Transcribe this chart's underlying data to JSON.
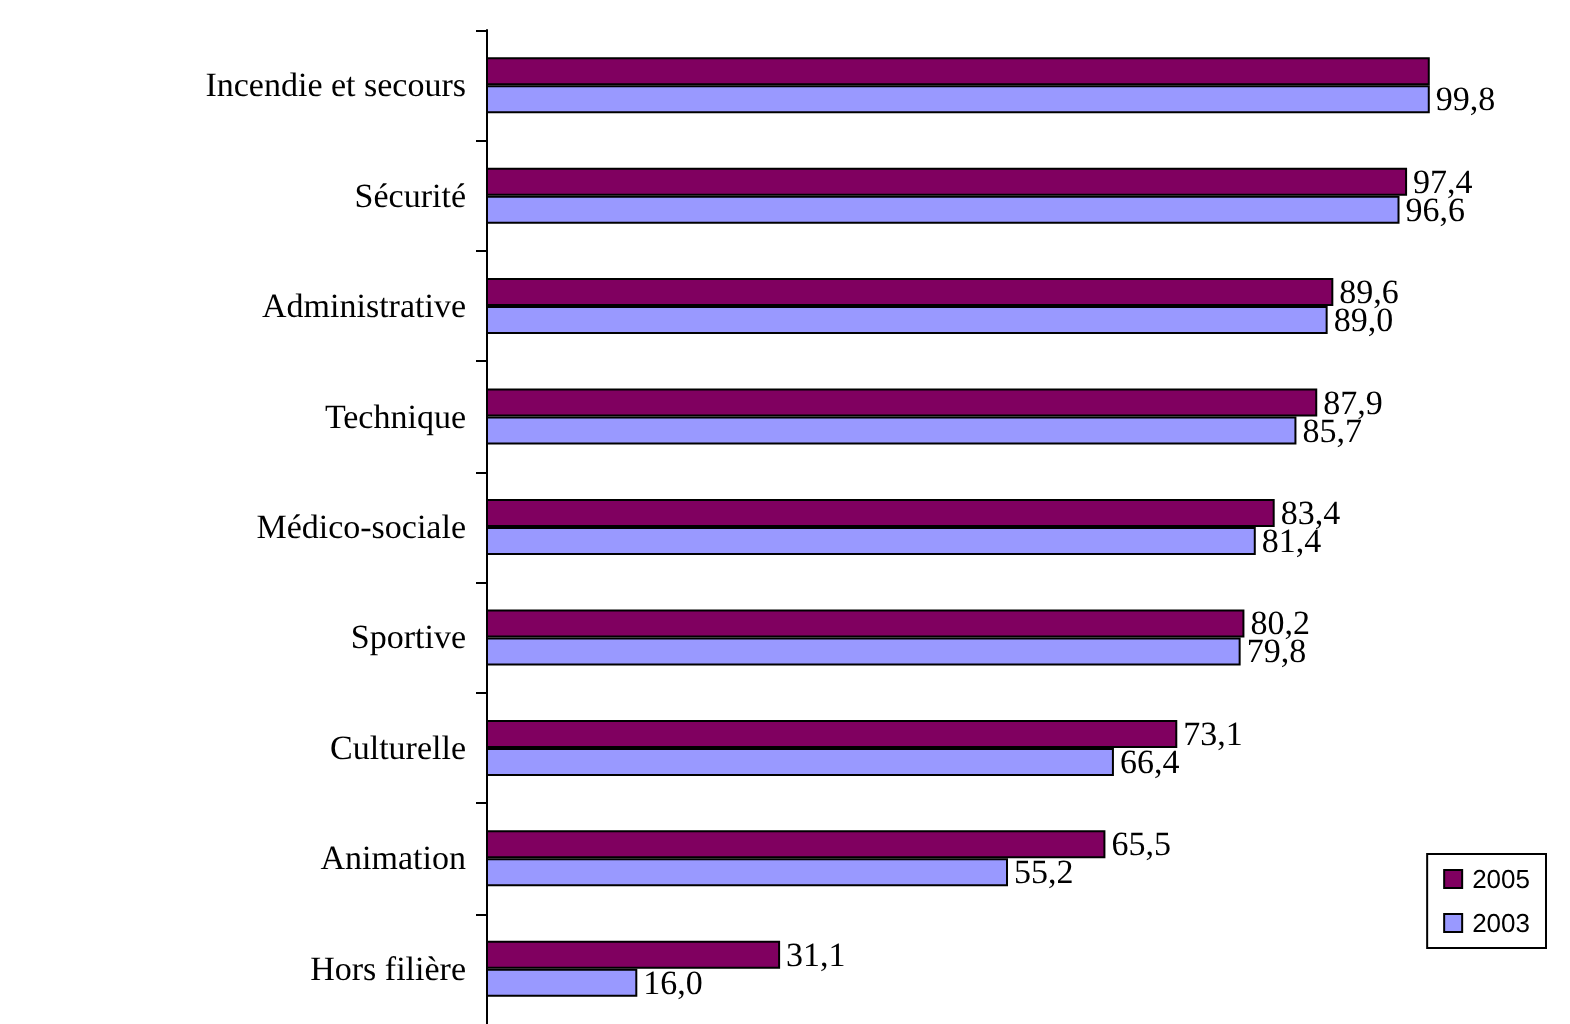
{
  "chart_data": {
    "type": "bar",
    "orientation": "horizontal",
    "categories": [
      "Incendie et secours",
      "Sécurité",
      "Administrative",
      "Technique",
      "Médico-sociale",
      "Sportive",
      "Culturelle",
      "Animation",
      "Hors filière"
    ],
    "series": [
      {
        "name": "2005",
        "color": "#800060",
        "values": [
          99.8,
          97.4,
          89.6,
          87.9,
          83.4,
          80.2,
          73.1,
          65.5,
          31.1
        ],
        "value_labels": [
          null,
          "97,4",
          "89,6",
          "87,9",
          "83,4",
          "80,2",
          "73,1",
          "65,5",
          "31,1"
        ]
      },
      {
        "name": "2003",
        "color": "#9999ff",
        "values": [
          99.8,
          96.6,
          89.0,
          85.7,
          81.4,
          79.8,
          66.4,
          55.2,
          16.0
        ],
        "value_labels": [
          "99,8",
          "96,6",
          "89,0",
          "85,7",
          "81,4",
          "79,8",
          "66,4",
          "55,2",
          "16,0"
        ]
      }
    ],
    "legend": "bottom right"
  }
}
